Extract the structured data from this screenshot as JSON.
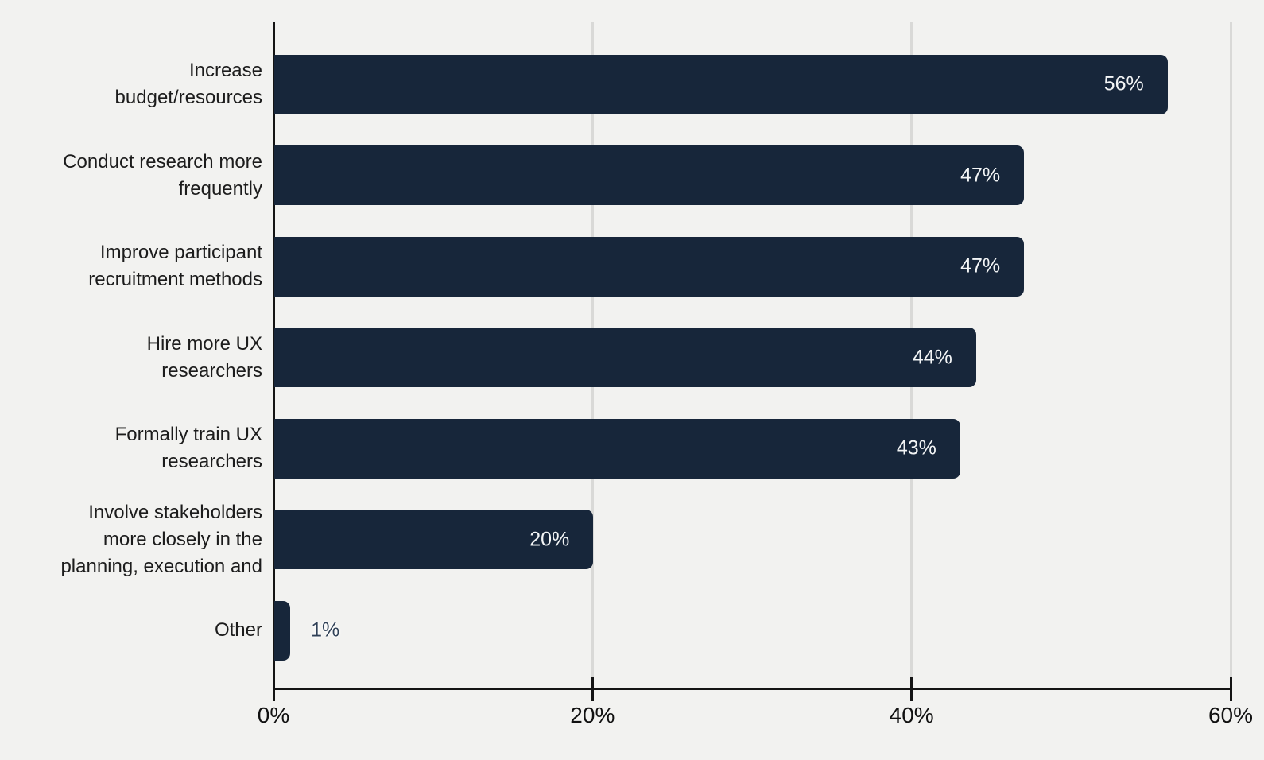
{
  "chart_data": {
    "type": "bar",
    "orientation": "horizontal",
    "title": "",
    "xlabel": "",
    "ylabel": "",
    "categories": [
      "Increase\nbudget/resources",
      "Conduct research more\nfrequently",
      "Improve participant\nrecruitment methods",
      "Hire more UX\nresearchers",
      "Formally train UX\nresearchers",
      "Involve stakeholders\nmore closely in the\nplanning, execution and",
      "Other"
    ],
    "values": [
      56,
      47,
      47,
      44,
      43,
      20,
      1
    ],
    "value_labels": [
      "56%",
      "47%",
      "47%",
      "44%",
      "43%",
      "20%",
      "1%"
    ],
    "xlim": [
      0,
      60
    ],
    "x_ticks": [
      0,
      20,
      40,
      60
    ],
    "x_tick_labels": [
      "0%",
      "20%",
      "40%",
      "60%"
    ],
    "grid": "vertical-gridlines-at-ticks",
    "legend": "none",
    "colors": {
      "bar": "#17263a",
      "background": "#f2f2f0",
      "gridline": "#d9d9d7",
      "axis": "#141414",
      "label_text": "#1c1c1c",
      "tick_text": "#111111",
      "value_text_inside": "#f3f5f6",
      "value_text_outside": "#304157"
    }
  }
}
